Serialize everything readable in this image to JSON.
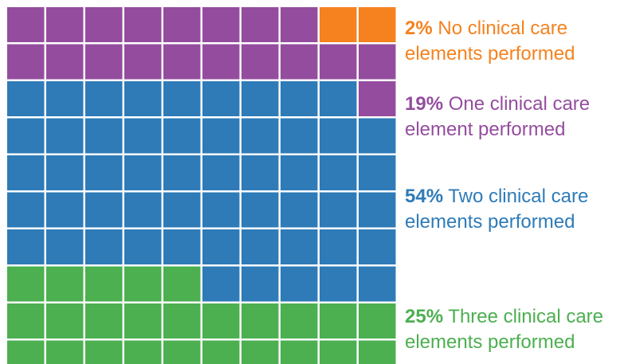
{
  "chart_data": {
    "type": "waffle",
    "total_cells": 100,
    "grid": {
      "rows": 10,
      "cols": 10
    },
    "fill_order": "bottom-to-top, left-to-right",
    "cell_border_color": "#ffffff",
    "categories": [
      {
        "percent": 25,
        "pct_label": "25%",
        "line1": "Three clinical care",
        "line2": "elements performed",
        "color": "#4CAF50"
      },
      {
        "percent": 54,
        "pct_label": "54%",
        "line1": "Two clinical care",
        "line2": "elements performed",
        "color": "#2E7BB8"
      },
      {
        "percent": 19,
        "pct_label": "19%",
        "line1": "One clinical care",
        "line2": "element performed",
        "color": "#944D9E"
      },
      {
        "percent": 2,
        "pct_label": "2%",
        "line1": "No clinical care",
        "line2": "elements performed",
        "color": "#F5821F"
      }
    ]
  }
}
